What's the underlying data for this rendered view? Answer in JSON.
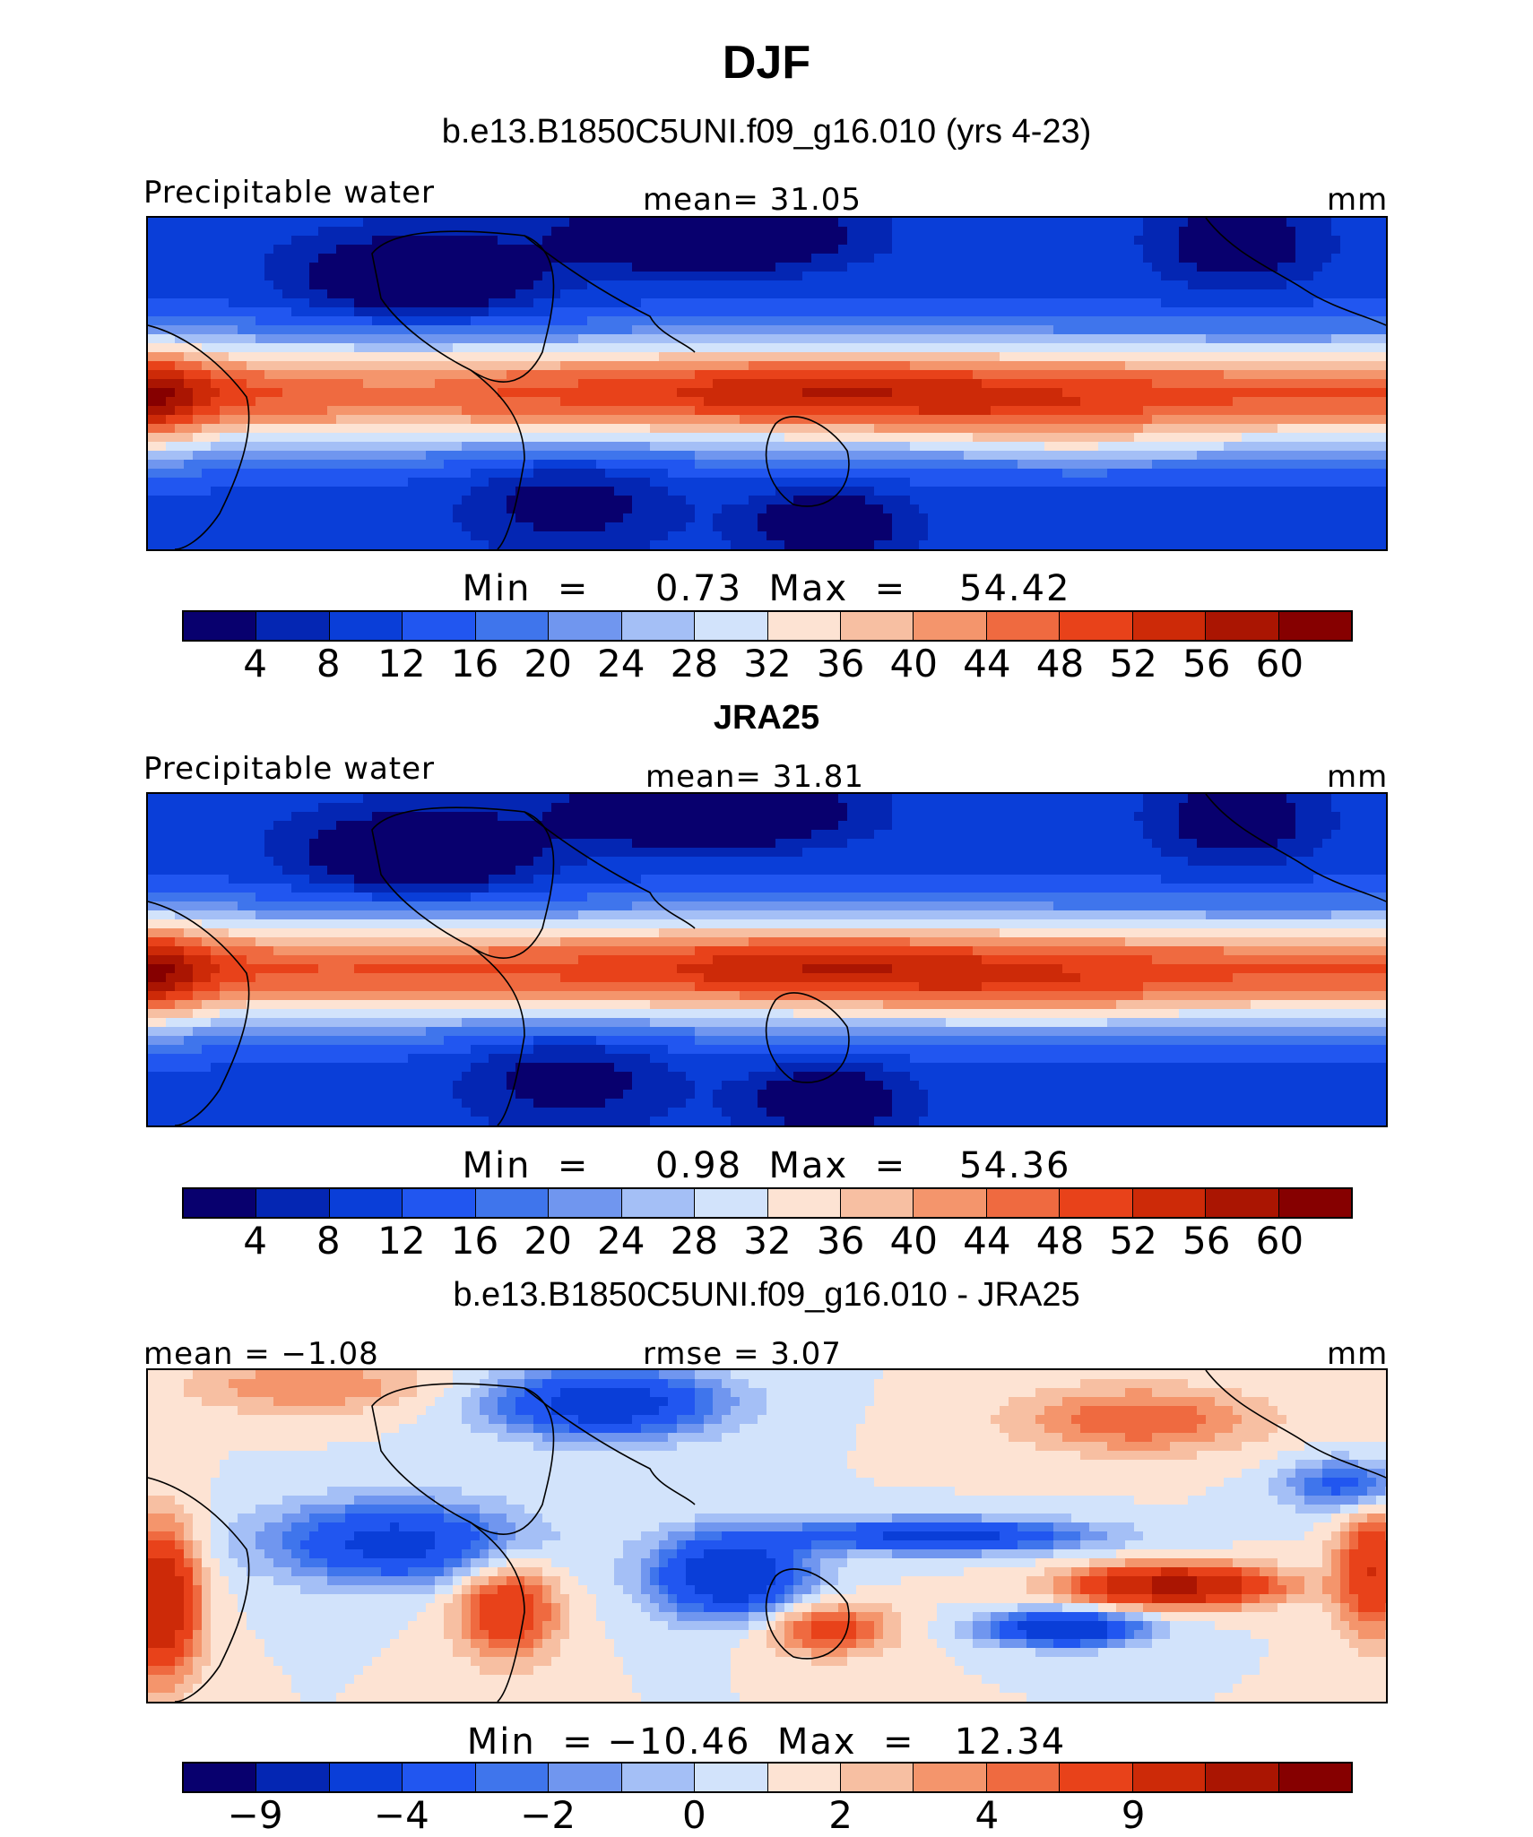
{
  "title": "DJF",
  "colors": [
    "#08006e",
    "#0426b3",
    "#0a3ed8",
    "#2156f0",
    "#3f75ec",
    "#7096ef",
    "#a4bff6",
    "#d2e3fb",
    "#fde3d3",
    "#f7bfa2",
    "#f4956c",
    "#ef6a40",
    "#e8421a",
    "#cd2a08",
    "#aa1502",
    "#860000"
  ],
  "ticks_abs": [
    "4",
    "8",
    "12",
    "16",
    "20",
    "24",
    "28",
    "32",
    "36",
    "40",
    "44",
    "48",
    "52",
    "56",
    "60"
  ],
  "ticks_diff": [
    "−9",
    "−4",
    "−2",
    "0",
    "2",
    "4",
    "9"
  ],
  "panels": [
    {
      "heading": "b.e13.B1850C5UNI.f09_g16.010 (yrs 4-23)",
      "left_label": "Precipitable water",
      "center_label": "mean=   31.05",
      "right_label": "mm",
      "minmax": "Min  =     0.73  Max  =    54.42",
      "kind": "model"
    },
    {
      "heading": "JRA25",
      "left_label": "Precipitable water",
      "center_label": "mean=   31.81",
      "right_label": "mm",
      "minmax": "Min  =     0.98  Max  =    54.36",
      "kind": "obs"
    },
    {
      "heading": "b.e13.B1850C5UNI.f09_g16.010 - JRA25",
      "left_label": "mean  =   −1.08",
      "center_label": "rmse  =    3.07",
      "right_label": "mm",
      "minmax": "Min  = −10.46  Max  =   12.34",
      "kind": "diff"
    }
  ]
}
